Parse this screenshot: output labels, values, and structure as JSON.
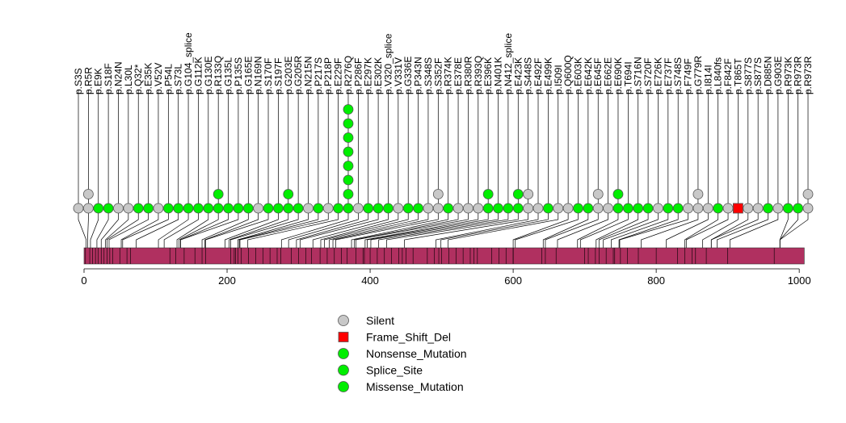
{
  "chart_data": {
    "type": "lollipop",
    "xlim": [
      0,
      1010
    ],
    "x_ticks": [
      0,
      200,
      400,
      600,
      800,
      1000
    ],
    "protein_length": 1007,
    "protein_color": "#b03060",
    "colors": {
      "Silent": "#c8c8c8",
      "Frame_Shift_Del": "#ff0000",
      "Nonsense_Mutation": "#00ee00",
      "Splice_Site": "#00ee00",
      "Missense_Mutation": "#00ee00"
    },
    "legend": [
      {
        "name": "Silent",
        "shape": "circle",
        "color": "#c8c8c8"
      },
      {
        "name": "Frame_Shift_Del",
        "shape": "square",
        "color": "#ff0000"
      },
      {
        "name": "Nonsense_Mutation",
        "shape": "circle",
        "color": "#00ee00"
      },
      {
        "name": "Splice_Site",
        "shape": "circle",
        "color": "#00ee00"
      },
      {
        "name": "Missense_Mutation",
        "shape": "circle",
        "color": "#00ee00"
      }
    ],
    "domain_boundaries": [
      2,
      8,
      12,
      16,
      20,
      24,
      28,
      32,
      36,
      40,
      50,
      60,
      65,
      120,
      128,
      140,
      155,
      165,
      170,
      205,
      210,
      212,
      215,
      220,
      230,
      240,
      250,
      260,
      270,
      275,
      290,
      300,
      310,
      318,
      330,
      340,
      350,
      360,
      368,
      380,
      390,
      392,
      400,
      410,
      420,
      430,
      440,
      445,
      450,
      460,
      480,
      490,
      496,
      500,
      510,
      520,
      530,
      540,
      545,
      550,
      570,
      580,
      590,
      600,
      600,
      640,
      645,
      660,
      700,
      705,
      715,
      720,
      730,
      740,
      742,
      750,
      760,
      775,
      800,
      830,
      840,
      850,
      855,
      870,
      900,
      965
    ],
    "mutations": [
      {
        "label": "p.S3S",
        "position": 3,
        "counts": [
          {
            "type": "Silent",
            "n": 1
          }
        ]
      },
      {
        "label": "p.R5R",
        "position": 5,
        "counts": [
          {
            "type": "Silent",
            "n": 2
          }
        ]
      },
      {
        "label": "p.E9K",
        "position": 9,
        "counts": [
          {
            "type": "Missense_Mutation",
            "n": 1
          }
        ]
      },
      {
        "label": "p.S18F",
        "position": 18,
        "counts": [
          {
            "type": "Missense_Mutation",
            "n": 1
          }
        ]
      },
      {
        "label": "p.N24N",
        "position": 24,
        "counts": [
          {
            "type": "Silent",
            "n": 1
          }
        ]
      },
      {
        "label": "p.L30L",
        "position": 30,
        "counts": [
          {
            "type": "Silent",
            "n": 1
          }
        ]
      },
      {
        "label": "p.Q32*",
        "position": 32,
        "counts": [
          {
            "type": "Nonsense_Mutation",
            "n": 1
          }
        ]
      },
      {
        "label": "p.E35K",
        "position": 35,
        "counts": [
          {
            "type": "Missense_Mutation",
            "n": 1
          }
        ]
      },
      {
        "label": "p.V52V",
        "position": 52,
        "counts": [
          {
            "type": "Silent",
            "n": 1
          }
        ]
      },
      {
        "label": "p.P54L",
        "position": 54,
        "counts": [
          {
            "type": "Missense_Mutation",
            "n": 1
          }
        ]
      },
      {
        "label": "p.S73L",
        "position": 73,
        "counts": [
          {
            "type": "Missense_Mutation",
            "n": 1
          }
        ]
      },
      {
        "label": "p.G104_splice",
        "position": 104,
        "counts": [
          {
            "type": "Splice_Site",
            "n": 1
          }
        ]
      },
      {
        "label": "p.G112K",
        "position": 112,
        "counts": [
          {
            "type": "Missense_Mutation",
            "n": 1
          }
        ]
      },
      {
        "label": "p.G130E",
        "position": 130,
        "counts": [
          {
            "type": "Missense_Mutation",
            "n": 1
          }
        ]
      },
      {
        "label": "p.R133Q",
        "position": 133,
        "counts": [
          {
            "type": "Missense_Mutation",
            "n": 2
          }
        ]
      },
      {
        "label": "p.G135L",
        "position": 135,
        "counts": [
          {
            "type": "Missense_Mutation",
            "n": 1
          }
        ]
      },
      {
        "label": "p.P135S",
        "position": 135,
        "counts": [
          {
            "type": "Missense_Mutation",
            "n": 1
          }
        ]
      },
      {
        "label": "p.G165E",
        "position": 165,
        "counts": [
          {
            "type": "Missense_Mutation",
            "n": 1
          }
        ]
      },
      {
        "label": "p.N169N",
        "position": 169,
        "counts": [
          {
            "type": "Silent",
            "n": 1
          }
        ]
      },
      {
        "label": "p.S170F",
        "position": 170,
        "counts": [
          {
            "type": "Missense_Mutation",
            "n": 1
          }
        ]
      },
      {
        "label": "p.S197F",
        "position": 197,
        "counts": [
          {
            "type": "Missense_Mutation",
            "n": 1
          }
        ]
      },
      {
        "label": "p.G203E",
        "position": 203,
        "counts": [
          {
            "type": "Missense_Mutation",
            "n": 2
          }
        ]
      },
      {
        "label": "p.G205R",
        "position": 205,
        "counts": [
          {
            "type": "Missense_Mutation",
            "n": 1
          }
        ]
      },
      {
        "label": "p.N215N",
        "position": 215,
        "counts": [
          {
            "type": "Silent",
            "n": 1
          }
        ]
      },
      {
        "label": "p.P217S",
        "position": 217,
        "counts": [
          {
            "type": "Missense_Mutation",
            "n": 1
          }
        ]
      },
      {
        "label": "p.P218P",
        "position": 218,
        "counts": [
          {
            "type": "Silent",
            "n": 1
          }
        ]
      },
      {
        "label": "p.E229F",
        "position": 229,
        "counts": [
          {
            "type": "Missense_Mutation",
            "n": 1
          }
        ]
      },
      {
        "label": "p.R276Q",
        "position": 276,
        "counts": [
          {
            "type": "Missense_Mutation",
            "n": 8
          }
        ]
      },
      {
        "label": "p.P286F",
        "position": 286,
        "counts": [
          {
            "type": "Silent",
            "n": 1
          }
        ]
      },
      {
        "label": "p.E297K",
        "position": 297,
        "counts": [
          {
            "type": "Missense_Mutation",
            "n": 1
          }
        ]
      },
      {
        "label": "p.E302K",
        "position": 302,
        "counts": [
          {
            "type": "Missense_Mutation",
            "n": 1
          }
        ]
      },
      {
        "label": "p.V320_splice",
        "position": 320,
        "counts": [
          {
            "type": "Splice_Site",
            "n": 1
          }
        ]
      },
      {
        "label": "p.V331V",
        "position": 331,
        "counts": [
          {
            "type": "Silent",
            "n": 1
          }
        ]
      },
      {
        "label": "p.G336E",
        "position": 336,
        "counts": [
          {
            "type": "Missense_Mutation",
            "n": 1
          }
        ]
      },
      {
        "label": "p.P343N",
        "position": 343,
        "counts": [
          {
            "type": "Missense_Mutation",
            "n": 1
          }
        ]
      },
      {
        "label": "p.S348S",
        "position": 348,
        "counts": [
          {
            "type": "Silent",
            "n": 1
          }
        ]
      },
      {
        "label": "p.S352F",
        "position": 352,
        "counts": [
          {
            "type": "Silent",
            "n": 2
          }
        ]
      },
      {
        "label": "p.R374K",
        "position": 374,
        "counts": [
          {
            "type": "Missense_Mutation",
            "n": 1
          }
        ]
      },
      {
        "label": "p.E378E",
        "position": 378,
        "counts": [
          {
            "type": "Silent",
            "n": 1
          }
        ]
      },
      {
        "label": "p.R380R",
        "position": 380,
        "counts": [
          {
            "type": "Silent",
            "n": 1
          }
        ]
      },
      {
        "label": "p.R393Q",
        "position": 393,
        "counts": [
          {
            "type": "Silent",
            "n": 1
          }
        ]
      },
      {
        "label": "p.E396K",
        "position": 396,
        "counts": [
          {
            "type": "Missense_Mutation",
            "n": 2
          }
        ]
      },
      {
        "label": "p.N401K",
        "position": 401,
        "counts": [
          {
            "type": "Missense_Mutation",
            "n": 1
          }
        ]
      },
      {
        "label": "p.N412_splice",
        "position": 412,
        "counts": [
          {
            "type": "Splice_Site",
            "n": 1
          }
        ]
      },
      {
        "label": "p.E423K",
        "position": 423,
        "counts": [
          {
            "type": "Missense_Mutation",
            "n": 2
          }
        ]
      },
      {
        "label": "p.S448S",
        "position": 448,
        "counts": [
          {
            "type": "Silent",
            "n": 2
          }
        ]
      },
      {
        "label": "p.E492F",
        "position": 492,
        "counts": [
          {
            "type": "Silent",
            "n": 1
          }
        ]
      },
      {
        "label": "p.E499K",
        "position": 499,
        "counts": [
          {
            "type": "Missense_Mutation",
            "n": 1
          }
        ]
      },
      {
        "label": "p.I509I",
        "position": 509,
        "counts": [
          {
            "type": "Silent",
            "n": 1
          }
        ]
      },
      {
        "label": "p.Q600Q",
        "position": 600,
        "counts": [
          {
            "type": "Silent",
            "n": 1
          }
        ]
      },
      {
        "label": "p.E603K",
        "position": 603,
        "counts": [
          {
            "type": "Missense_Mutation",
            "n": 1
          }
        ]
      },
      {
        "label": "p.E642K",
        "position": 642,
        "counts": [
          {
            "type": "Missense_Mutation",
            "n": 1
          }
        ]
      },
      {
        "label": "p.E645F",
        "position": 645,
        "counts": [
          {
            "type": "Silent",
            "n": 2
          }
        ]
      },
      {
        "label": "p.E662E",
        "position": 662,
        "counts": [
          {
            "type": "Silent",
            "n": 1
          }
        ]
      },
      {
        "label": "p.E690K",
        "position": 690,
        "counts": [
          {
            "type": "Missense_Mutation",
            "n": 2
          }
        ]
      },
      {
        "label": "p.T694I",
        "position": 694,
        "counts": [
          {
            "type": "Missense_Mutation",
            "n": 1
          }
        ]
      },
      {
        "label": "p.S716N",
        "position": 716,
        "counts": [
          {
            "type": "Missense_Mutation",
            "n": 1
          }
        ]
      },
      {
        "label": "p.S720F",
        "position": 720,
        "counts": [
          {
            "type": "Missense_Mutation",
            "n": 1
          }
        ]
      },
      {
        "label": "p.E726K",
        "position": 726,
        "counts": [
          {
            "type": "Silent",
            "n": 1
          }
        ]
      },
      {
        "label": "p.E737F",
        "position": 737,
        "counts": [
          {
            "type": "Missense_Mutation",
            "n": 1
          }
        ]
      },
      {
        "label": "p.S748S",
        "position": 748,
        "counts": [
          {
            "type": "Missense_Mutation",
            "n": 1
          }
        ]
      },
      {
        "label": "p.F749F",
        "position": 749,
        "counts": [
          {
            "type": "Silent",
            "n": 1
          }
        ]
      },
      {
        "label": "p.G779R",
        "position": 779,
        "counts": [
          {
            "type": "Silent",
            "n": 2
          }
        ]
      },
      {
        "label": "p.I814I",
        "position": 814,
        "counts": [
          {
            "type": "Silent",
            "n": 1
          }
        ]
      },
      {
        "label": "p.L840fs",
        "position": 840,
        "counts": [
          {
            "type": "Missense_Mutation",
            "n": 1
          }
        ]
      },
      {
        "label": "p.F842F",
        "position": 842,
        "counts": [
          {
            "type": "Silent",
            "n": 1
          }
        ]
      },
      {
        "label": "p.T865T",
        "position": 865,
        "counts": [
          {
            "type": "Frame_Shift_Del",
            "n": 1
          }
        ]
      },
      {
        "label": "p.S877S",
        "position": 877,
        "counts": [
          {
            "type": "Silent",
            "n": 1
          }
        ]
      },
      {
        "label": "p.S877S",
        "position": 877,
        "counts": [
          {
            "type": "Silent",
            "n": 1
          }
        ]
      },
      {
        "label": "p.D885N",
        "position": 885,
        "counts": [
          {
            "type": "Missense_Mutation",
            "n": 1
          }
        ]
      },
      {
        "label": "p.G903E",
        "position": 903,
        "counts": [
          {
            "type": "Silent",
            "n": 1
          }
        ]
      },
      {
        "label": "p.R973K",
        "position": 973,
        "counts": [
          {
            "type": "Missense_Mutation",
            "n": 1
          }
        ]
      },
      {
        "label": "p.R973R",
        "position": 973,
        "counts": [
          {
            "type": "Missense_Mutation",
            "n": 1
          }
        ]
      },
      {
        "label": "p.R973R",
        "position": 973,
        "counts": [
          {
            "type": "Silent",
            "n": 2
          }
        ]
      }
    ]
  }
}
